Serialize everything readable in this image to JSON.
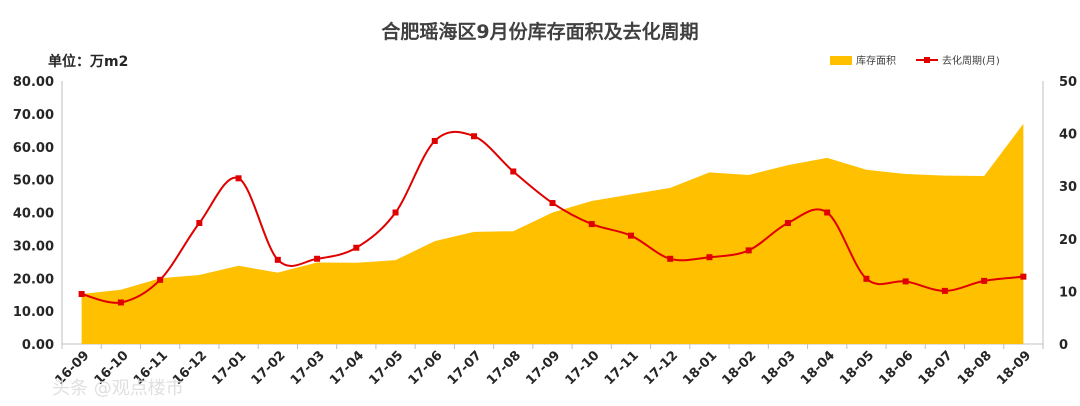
{
  "chart_data": {
    "type": "area+line",
    "title": "合肥瑶海区9月份库存面积及去化周期",
    "unit_label": "单位：万m2",
    "categories": [
      "16-09",
      "16-10",
      "16-11",
      "16-12",
      "17-01",
      "17-02",
      "17-03",
      "17-04",
      "17-05",
      "17-06",
      "17-07",
      "17-08",
      "17-09",
      "17-10",
      "17-11",
      "17-12",
      "18-01",
      "18-02",
      "18-03",
      "18-04",
      "18-05",
      "18-06",
      "18-07",
      "18-08",
      "18-09"
    ],
    "series": [
      {
        "name": "库存面积",
        "type": "area",
        "axis": "left",
        "color": "#FFC000",
        "values": [
          15.2,
          16.5,
          20.0,
          21.0,
          23.8,
          21.7,
          24.8,
          24.7,
          25.5,
          31.3,
          34.1,
          34.3,
          40.0,
          43.5,
          45.5,
          47.5,
          52.2,
          51.4,
          54.4,
          56.6,
          53.0,
          51.7,
          51.2,
          51.1,
          67.0
        ]
      },
      {
        "name": "去化周期(月)",
        "type": "line",
        "axis": "right",
        "color": "#E00000",
        "values": [
          9.5,
          7.9,
          12.2,
          23.0,
          31.5,
          16.0,
          16.2,
          18.3,
          25.0,
          38.6,
          39.5,
          32.8,
          26.8,
          22.8,
          20.6,
          16.2,
          16.5,
          17.8,
          23.0,
          25.0,
          12.4,
          11.9,
          10.1,
          12.0,
          12.8
        ]
      }
    ],
    "y_left": {
      "min": 0,
      "max": 80,
      "step": 10,
      "ticks": [
        "0.00",
        "10.00",
        "20.00",
        "30.00",
        "40.00",
        "50.00",
        "60.00",
        "70.00",
        "80.00"
      ]
    },
    "y_right": {
      "min": 0,
      "max": 50,
      "step": 10,
      "ticks": [
        "0",
        "10",
        "20",
        "30",
        "40",
        "50"
      ]
    },
    "legend": {
      "placement": "top-right",
      "items": [
        "库存面积",
        "去化周期(月)"
      ]
    },
    "grid": false
  },
  "watermark": "头条 @观点楼市"
}
